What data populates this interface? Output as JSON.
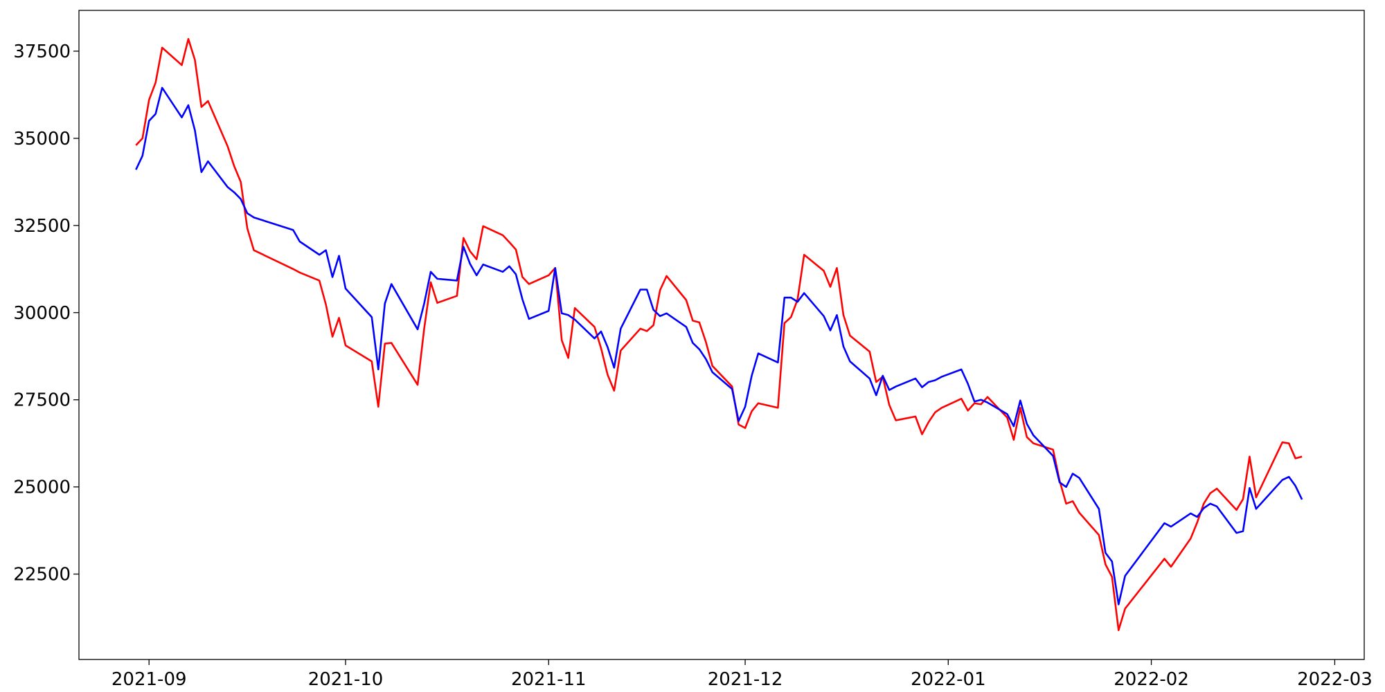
{
  "chart_data": {
    "type": "line",
    "x": [
      -2,
      -1,
      0,
      1,
      2,
      5,
      6,
      7,
      8,
      9,
      12,
      13,
      14,
      15,
      16,
      22,
      23,
      26,
      27,
      28,
      29,
      30,
      34,
      35,
      36,
      37,
      41,
      42,
      43,
      44,
      47,
      48,
      49,
      50,
      51,
      54,
      55,
      56,
      57,
      58,
      61,
      62,
      63,
      64,
      65,
      68,
      69,
      70,
      71,
      72,
      75,
      76,
      77,
      78,
      79,
      82,
      83,
      84,
      85,
      86,
      89,
      90,
      91,
      92,
      93,
      96,
      97,
      98,
      99,
      100,
      103,
      104,
      105,
      106,
      107,
      110,
      111,
      112,
      113,
      114,
      117,
      118,
      119,
      120,
      121,
      124,
      125,
      126,
      127,
      128,
      131,
      132,
      133,
      134,
      135,
      138,
      139,
      140,
      141,
      142,
      145,
      146,
      147,
      148,
      149,
      155,
      156,
      159,
      160,
      161,
      162,
      163,
      166,
      167,
      168,
      169,
      173,
      174,
      175,
      176
    ],
    "series": [
      {
        "color": "#ff0000",
        "values": [
          34800,
          35000,
          36100,
          36600,
          37600,
          37100,
          37850,
          37250,
          35900,
          36070,
          34770,
          34200,
          33750,
          32420,
          31790,
          31250,
          31150,
          30920,
          30230,
          29310,
          29850,
          29060,
          28600,
          27300,
          29110,
          29130,
          27930,
          29540,
          30870,
          30280,
          30480,
          32140,
          31760,
          31530,
          32480,
          32220,
          32020,
          31810,
          31020,
          30820,
          31070,
          31280,
          29210,
          28700,
          30130,
          29590,
          28980,
          28220,
          27760,
          28910,
          29540,
          29470,
          29640,
          30640,
          31050,
          30360,
          29770,
          29720,
          29160,
          28470,
          27880,
          26790,
          26690,
          27170,
          27400,
          27270,
          29700,
          29870,
          30380,
          31660,
          31200,
          30740,
          31280,
          29930,
          29340,
          28880,
          28010,
          28160,
          27350,
          26910,
          27020,
          26510,
          26860,
          27140,
          27270,
          27530,
          27190,
          27400,
          27370,
          27580,
          26990,
          26350,
          27270,
          26430,
          26250,
          26070,
          25180,
          24520,
          24590,
          24260,
          23620,
          22780,
          22420,
          20890,
          21510,
          22940,
          22710,
          23520,
          23980,
          24520,
          24820,
          24950,
          24340,
          24650,
          25870,
          24700,
          26280,
          26250,
          25820,
          25870
        ]
      },
      {
        "color": "#0000ff",
        "values": [
          34100,
          34500,
          35500,
          35700,
          36450,
          35600,
          35950,
          35230,
          34030,
          34340,
          33600,
          33450,
          33260,
          32850,
          32730,
          32370,
          32040,
          31660,
          31790,
          31020,
          31630,
          30690,
          29870,
          28370,
          30260,
          30820,
          29520,
          30260,
          31170,
          30970,
          30920,
          31890,
          31400,
          31070,
          31380,
          31170,
          31330,
          31100,
          30380,
          29820,
          30050,
          31280,
          29980,
          29930,
          29800,
          29260,
          29460,
          29010,
          28420,
          29540,
          30660,
          30660,
          30080,
          29900,
          29980,
          29590,
          29130,
          28950,
          28670,
          28290,
          27810,
          26890,
          27300,
          28190,
          28830,
          28570,
          30430,
          30430,
          30310,
          30560,
          29900,
          29490,
          29930,
          29030,
          28600,
          28110,
          27630,
          28190,
          27780,
          27880,
          28110,
          27860,
          28010,
          28060,
          28160,
          28370,
          27960,
          27450,
          27500,
          27420,
          27090,
          26740,
          27480,
          26810,
          26480,
          25890,
          25130,
          25000,
          25380,
          25260,
          24370,
          23110,
          22860,
          21630,
          22450,
          23960,
          23860,
          24240,
          24140,
          24390,
          24520,
          24440,
          23680,
          23730,
          24970,
          24370,
          25200,
          25290,
          25030,
          24640
        ]
      }
    ],
    "xlim": [
      -10.7,
      185.5
    ],
    "xticks": [
      {
        "value": 0,
        "label": "2021-09"
      },
      {
        "value": 30,
        "label": "2021-10"
      },
      {
        "value": 61,
        "label": "2021-11"
      },
      {
        "value": 91,
        "label": "2021-12"
      },
      {
        "value": 122,
        "label": "2022-01"
      },
      {
        "value": 153,
        "label": "2022-02"
      },
      {
        "value": 181,
        "label": "2022-03"
      }
    ],
    "ylim": [
      20050,
      38670
    ],
    "yticks": [
      22500,
      25000,
      27500,
      30000,
      32500,
      35000,
      37500
    ]
  }
}
